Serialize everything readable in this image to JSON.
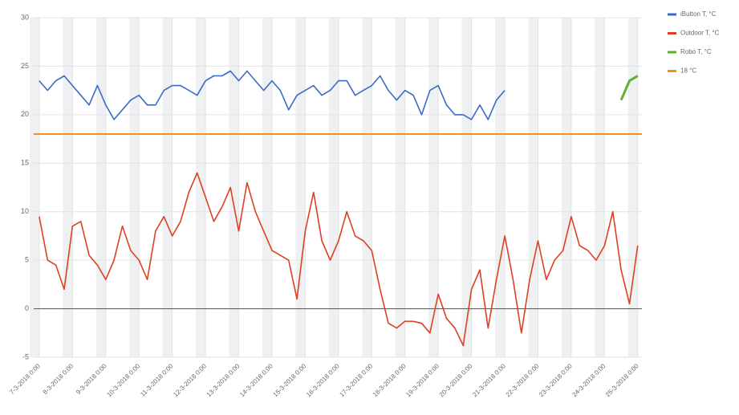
{
  "chart_data": {
    "type": "line",
    "x": [
      "7-3-2018 0:00",
      "7-3-2018 6:00",
      "7-3-2018 12:00",
      "7-3-2018 18:00",
      "8-3-2018 0:00",
      "8-3-2018 6:00",
      "8-3-2018 12:00",
      "8-3-2018 18:00",
      "9-3-2018 0:00",
      "9-3-2018 6:00",
      "9-3-2018 12:00",
      "9-3-2018 18:00",
      "10-3-2018 0:00",
      "10-3-2018 6:00",
      "10-3-2018 12:00",
      "10-3-2018 18:00",
      "11-3-2018 0:00",
      "11-3-2018 6:00",
      "11-3-2018 12:00",
      "11-3-2018 18:00",
      "12-3-2018 0:00",
      "12-3-2018 6:00",
      "12-3-2018 12:00",
      "12-3-2018 18:00",
      "13-3-2018 0:00",
      "13-3-2018 6:00",
      "13-3-2018 12:00",
      "13-3-2018 18:00",
      "14-3-2018 0:00",
      "14-3-2018 6:00",
      "14-3-2018 12:00",
      "14-3-2018 18:00",
      "15-3-2018 0:00",
      "15-3-2018 6:00",
      "15-3-2018 12:00",
      "15-3-2018 18:00",
      "16-3-2018 0:00",
      "16-3-2018 6:00",
      "16-3-2018 12:00",
      "16-3-2018 18:00",
      "17-3-2018 0:00",
      "17-3-2018 6:00",
      "17-3-2018 12:00",
      "17-3-2018 18:00",
      "18-3-2018 0:00",
      "18-3-2018 6:00",
      "18-3-2018 12:00",
      "18-3-2018 18:00",
      "19-3-2018 0:00",
      "19-3-2018 6:00",
      "19-3-2018 12:00",
      "19-3-2018 18:00",
      "20-3-2018 0:00",
      "20-3-2018 6:00",
      "20-3-2018 12:00",
      "20-3-2018 18:00",
      "21-3-2018 0:00",
      "21-3-2018 6:00",
      "21-3-2018 12:00",
      "21-3-2018 18:00",
      "22-3-2018 0:00",
      "22-3-2018 6:00",
      "22-3-2018 12:00",
      "22-3-2018 18:00",
      "23-3-2018 0:00",
      "23-3-2018 6:00",
      "23-3-2018 12:00",
      "23-3-2018 18:00",
      "24-3-2018 0:00",
      "24-3-2018 6:00",
      "24-3-2018 12:00",
      "24-3-2018 18:00",
      "25-3-2018 0:00"
    ],
    "series": [
      {
        "name": "iButton T, °C",
        "color": "#3d6bc4",
        "values": [
          23.5,
          22.5,
          23.5,
          24,
          23,
          22,
          21,
          23,
          21,
          19.5,
          20.5,
          21.5,
          22,
          21,
          21,
          22.5,
          23,
          23,
          22.5,
          22,
          23.5,
          24,
          24,
          24.5,
          23.5,
          24.5,
          23.5,
          22.5,
          23.5,
          22.5,
          20.5,
          22,
          22.5,
          23,
          22,
          22.5,
          23.5,
          23.5,
          22,
          22.5,
          23,
          24,
          22.5,
          21.5,
          22.5,
          22,
          20,
          22.5,
          23,
          21,
          20,
          20,
          19.5,
          21,
          19.5,
          21.5,
          22.5,
          null,
          null,
          null,
          null,
          null,
          null,
          null,
          null,
          null,
          null,
          null,
          null,
          null,
          null,
          null,
          null
        ]
      },
      {
        "name": "Outdoor T, °C",
        "color": "#dd4022",
        "values": [
          9.5,
          5,
          4.5,
          2,
          8.5,
          9,
          5.5,
          4.5,
          3,
          5,
          8.5,
          6,
          5,
          3,
          8,
          9.5,
          7.5,
          9,
          12,
          14,
          11.5,
          9,
          10.5,
          12.5,
          8,
          13,
          10,
          8,
          6,
          5.5,
          5,
          1,
          8,
          12,
          7,
          5,
          7,
          10,
          7.5,
          7,
          6,
          2,
          -1.5,
          -2,
          -1.3,
          -1.3,
          -1.5,
          -2.5,
          1.5,
          -1,
          -2,
          -3.8,
          2,
          4,
          -2,
          3,
          7.5,
          3,
          -2.5,
          3,
          7,
          3,
          5,
          6,
          9.5,
          6.5,
          6,
          5,
          6.5,
          10,
          4,
          0.5,
          6.5
        ]
      },
      {
        "name": "Robo T, °C",
        "color": "#5cb136",
        "values": [
          null,
          null,
          null,
          null,
          null,
          null,
          null,
          null,
          null,
          null,
          null,
          null,
          null,
          null,
          null,
          null,
          null,
          null,
          null,
          null,
          null,
          null,
          null,
          null,
          null,
          null,
          null,
          null,
          null,
          null,
          null,
          null,
          null,
          null,
          null,
          null,
          null,
          null,
          null,
          null,
          null,
          null,
          null,
          null,
          null,
          null,
          null,
          null,
          null,
          null,
          null,
          null,
          null,
          null,
          null,
          null,
          null,
          null,
          null,
          null,
          null,
          null,
          null,
          null,
          null,
          null,
          null,
          null,
          null,
          null,
          21.5,
          23.5,
          24
        ]
      }
    ],
    "reference": {
      "name": "18 °C",
      "color": "#f09419",
      "value": 18
    },
    "xlim": [
      "6-3-2018 20:00",
      "25-3-2018 3:00"
    ],
    "xticks": [
      "7-3-2018 0:00",
      "8-3-2018 0:00",
      "9-3-2018 0:00",
      "10-3-2018 0:00",
      "11-3-2018 0:00",
      "12-3-2018 0:00",
      "13-3-2018 0:00",
      "14-3-2018 0:00",
      "15-3-2018 0:00",
      "16-3-2018 0:00",
      "17-3-2018 0:00",
      "18-3-2018 0:00",
      "19-3-2018 0:00",
      "20-3-2018 0:00",
      "21-3-2018 0:00",
      "22-3-2018 0:00",
      "23-3-2018 0:00",
      "24-3-2018 0:00",
      "25-3-2018 0:00"
    ],
    "ylim": [
      -5,
      30
    ],
    "yticks": [
      -5,
      0,
      5,
      10,
      15,
      20,
      25,
      30
    ],
    "grid": true
  }
}
